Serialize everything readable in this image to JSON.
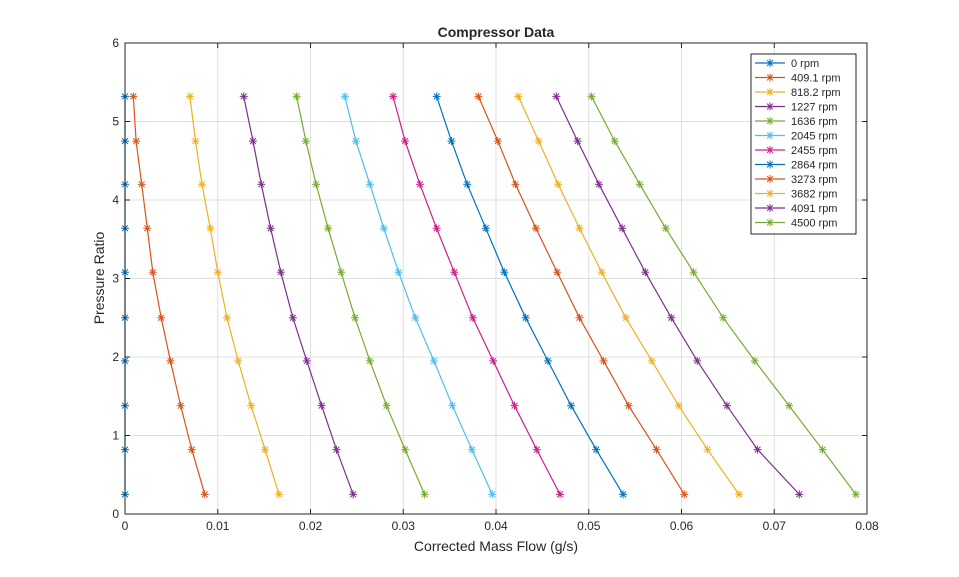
{
  "chart_data": {
    "type": "line",
    "title": "Compressor Data",
    "xlabel": "Corrected Mass Flow (g/s)",
    "ylabel": "Pressure Ratio",
    "xlim": [
      0,
      0.08
    ],
    "ylim": [
      0,
      6
    ],
    "xticks": [
      "0",
      "0.01",
      "0.02",
      "0.03",
      "0.04",
      "0.05",
      "0.06",
      "0.07",
      "0.08"
    ],
    "yticks": [
      "0",
      "1",
      "2",
      "3",
      "4",
      "5",
      "6"
    ],
    "grid": true,
    "legend_position": "top-right",
    "marker": "asterisk",
    "y": [
      5.32,
      4.75,
      4.2,
      3.64,
      3.08,
      2.5,
      1.95,
      1.38,
      0.82,
      0.25
    ],
    "series": [
      {
        "name": "0 rpm",
        "color": "#0072BD",
        "x": [
          0,
          0,
          0,
          0,
          0,
          0,
          0,
          0,
          0,
          0
        ]
      },
      {
        "name": "409.1 rpm",
        "color": "#D95319",
        "x": [
          0.0009,
          0.0012,
          0.0018,
          0.0024,
          0.003,
          0.0039,
          0.0049,
          0.006,
          0.0072,
          0.0086
        ]
      },
      {
        "name": "818.2 rpm",
        "color": "#EDB120",
        "x": [
          0.007,
          0.0076,
          0.0083,
          0.0092,
          0.01,
          0.011,
          0.0122,
          0.0136,
          0.0151,
          0.0166
        ]
      },
      {
        "name": "1227 rpm",
        "color": "#7E2F8E",
        "x": [
          0.0128,
          0.0138,
          0.0147,
          0.0157,
          0.0168,
          0.0181,
          0.0196,
          0.0212,
          0.0228,
          0.0246
        ]
      },
      {
        "name": "1636 rpm",
        "color": "#77AC30",
        "x": [
          0.0185,
          0.0195,
          0.0206,
          0.0219,
          0.0233,
          0.0248,
          0.0264,
          0.0282,
          0.0302,
          0.0323
        ]
      },
      {
        "name": "2045 rpm",
        "color": "#4DBEEE",
        "x": [
          0.0237,
          0.0249,
          0.0264,
          0.0279,
          0.0295,
          0.0313,
          0.0333,
          0.0353,
          0.0374,
          0.0396
        ]
      },
      {
        "name": "2455 rpm",
        "color": "#D01C8B",
        "x": [
          0.0289,
          0.0302,
          0.0318,
          0.0336,
          0.0355,
          0.0375,
          0.0397,
          0.042,
          0.0444,
          0.0469
        ]
      },
      {
        "name": "2864 rpm",
        "color": "#0072BD",
        "x": [
          0.0336,
          0.0352,
          0.0369,
          0.0389,
          0.0409,
          0.0432,
          0.0456,
          0.0481,
          0.0508,
          0.0537
        ]
      },
      {
        "name": "3273 rpm",
        "color": "#D95319",
        "x": [
          0.0381,
          0.0402,
          0.0421,
          0.0443,
          0.0466,
          0.049,
          0.0516,
          0.0543,
          0.0573,
          0.0603
        ]
      },
      {
        "name": "3682 rpm",
        "color": "#EDB120",
        "x": [
          0.0424,
          0.0446,
          0.0467,
          0.049,
          0.0514,
          0.054,
          0.0568,
          0.0597,
          0.0628,
          0.0662
        ]
      },
      {
        "name": "4091 rpm",
        "color": "#7E2F8E",
        "x": [
          0.0465,
          0.0488,
          0.0511,
          0.0536,
          0.0561,
          0.0589,
          0.0617,
          0.0649,
          0.0682,
          0.0727
        ]
      },
      {
        "name": "4500 rpm",
        "color": "#77AC30",
        "x": [
          0.0503,
          0.0528,
          0.0555,
          0.0583,
          0.0613,
          0.0645,
          0.0679,
          0.0716,
          0.0752,
          0.0788
        ]
      }
    ]
  }
}
